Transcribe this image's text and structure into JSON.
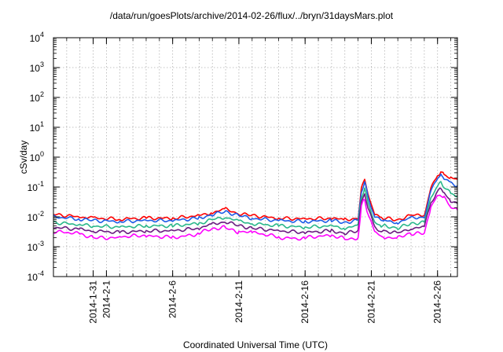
{
  "chart_data": {
    "type": "line",
    "title": "/data/run/goesPlots/archive/2014-02-26/flux/../bryn/31daysMars.plot",
    "xlabel": "Coordinated Universal Time (UTC)",
    "ylabel": "cSv/day",
    "y_scale": "log",
    "ylim": [
      0.0001,
      10000
    ],
    "y_ticks": [
      {
        "value": 0.0001,
        "base": "10",
        "exp": "-4"
      },
      {
        "value": 0.001,
        "base": "10",
        "exp": "-3"
      },
      {
        "value": 0.01,
        "base": "10",
        "exp": "-2"
      },
      {
        "value": 0.1,
        "base": "10",
        "exp": "-1"
      },
      {
        "value": 1,
        "base": "10",
        "exp": "0"
      },
      {
        "value": 10,
        "base": "10",
        "exp": "1"
      },
      {
        "value": 100,
        "base": "10",
        "exp": "2"
      },
      {
        "value": 1000,
        "base": "10",
        "exp": "3"
      },
      {
        "value": 10000,
        "base": "10",
        "exp": "4"
      }
    ],
    "x_ticks": [
      {
        "date": "2014-01-31",
        "label": "2014-1-31"
      },
      {
        "date": "2014-02-01",
        "label": "2014-2-1"
      },
      {
        "date": "2014-02-06",
        "label": "2014-2-6"
      },
      {
        "date": "2014-02-11",
        "label": "2014-2-11"
      },
      {
        "date": "2014-02-16",
        "label": "2014-2-16"
      },
      {
        "date": "2014-02-21",
        "label": "2014-2-21"
      },
      {
        "date": "2014-02-26",
        "label": "2014-2-26"
      }
    ],
    "xlim": [
      "2014-01-28T00:00",
      "2014-02-27T12:00"
    ],
    "grid": true,
    "legend": "none",
    "x": [
      "2014-01-28",
      "2014-01-30",
      "2014-01-31",
      "2014-02-02",
      "2014-02-04",
      "2014-02-06",
      "2014-02-08",
      "2014-02-09",
      "2014-02-10",
      "2014-02-11",
      "2014-02-12",
      "2014-02-14",
      "2014-02-16",
      "2014-02-18",
      "2014-02-19",
      "2014-02-20",
      "2014-02-20T06:00",
      "2014-02-20T12:00",
      "2014-02-20T18:00",
      "2014-02-21T06:00",
      "2014-02-21T18:00",
      "2014-02-22",
      "2014-02-23",
      "2014-02-24",
      "2014-02-25",
      "2014-02-25T12:00",
      "2014-02-26",
      "2014-02-26T06:00",
      "2014-02-26T12:00",
      "2014-02-27",
      "2014-02-27T12:00"
    ],
    "series": [
      {
        "color": "#ff0000",
        "values": [
          0.012,
          0.01,
          0.009,
          0.0085,
          0.009,
          0.009,
          0.011,
          0.014,
          0.018,
          0.013,
          0.011,
          0.009,
          0.0085,
          0.009,
          0.008,
          0.009,
          0.09,
          0.18,
          0.06,
          0.012,
          0.009,
          0.009,
          0.008,
          0.011,
          0.012,
          0.09,
          0.24,
          0.33,
          0.26,
          0.2,
          0.18
        ]
      },
      {
        "color": "#1e5ce6",
        "values": [
          0.01,
          0.0085,
          0.0075,
          0.007,
          0.0075,
          0.0075,
          0.009,
          0.012,
          0.015,
          0.011,
          0.009,
          0.0075,
          0.007,
          0.0075,
          0.0065,
          0.0075,
          0.07,
          0.14,
          0.05,
          0.01,
          0.0075,
          0.0075,
          0.0065,
          0.009,
          0.01,
          0.075,
          0.19,
          0.26,
          0.2,
          0.13,
          0.11
        ]
      },
      {
        "color": "#2ab88a",
        "values": [
          0.0065,
          0.0055,
          0.005,
          0.0045,
          0.005,
          0.005,
          0.006,
          0.008,
          0.01,
          0.007,
          0.006,
          0.005,
          0.0045,
          0.005,
          0.0042,
          0.005,
          0.045,
          0.09,
          0.03,
          0.0065,
          0.005,
          0.005,
          0.0042,
          0.006,
          0.0065,
          0.045,
          0.11,
          0.14,
          0.1,
          0.06,
          0.05
        ]
      },
      {
        "color": "#6a1c80",
        "values": [
          0.0045,
          0.0038,
          0.0034,
          0.003,
          0.0034,
          0.0034,
          0.0042,
          0.0056,
          0.007,
          0.005,
          0.0042,
          0.0034,
          0.003,
          0.0034,
          0.0028,
          0.0034,
          0.032,
          0.06,
          0.02,
          0.0045,
          0.0034,
          0.0034,
          0.0028,
          0.0042,
          0.0045,
          0.03,
          0.075,
          0.09,
          0.06,
          0.035,
          0.028
        ]
      },
      {
        "color": "#ff00ff",
        "values": [
          0.003,
          0.0025,
          0.0022,
          0.002,
          0.0022,
          0.0022,
          0.0028,
          0.0037,
          0.0046,
          0.0033,
          0.0028,
          0.0022,
          0.002,
          0.0022,
          0.0018,
          0.0022,
          0.02,
          0.04,
          0.013,
          0.003,
          0.0022,
          0.0022,
          0.0018,
          0.0028,
          0.003,
          0.02,
          0.05,
          0.06,
          0.04,
          0.022,
          0.017
        ]
      }
    ]
  }
}
